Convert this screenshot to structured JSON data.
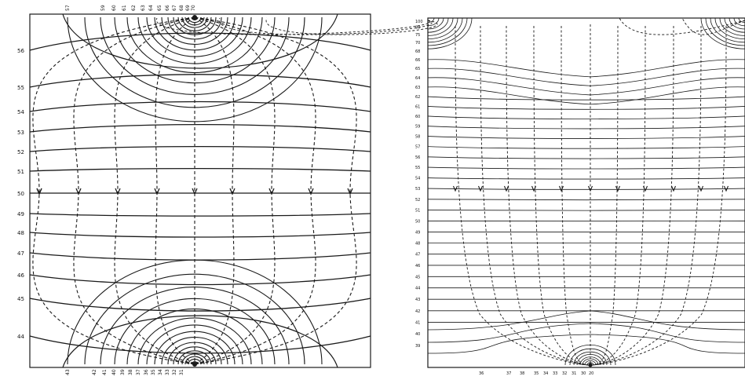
{
  "left_panel": {
    "left_labels": [
      "56",
      "55",
      "54",
      "53",
      "52",
      "51",
      "50",
      "49",
      "48",
      "47",
      "46",
      "45",
      "44"
    ],
    "top_labels": [
      "57",
      "59",
      "60",
      "61",
      "62",
      "63",
      "64",
      "65",
      "66",
      "67",
      "68",
      "69",
      "70"
    ],
    "bottom_labels": [
      "43",
      "42",
      "41",
      "40",
      "39",
      "38",
      "37",
      "36",
      "35",
      "34",
      "33",
      "32",
      "31"
    ]
  },
  "right_panel": {
    "left_labels": [
      "100",
      "80",
      "75",
      "70",
      "68",
      "66",
      "65",
      "64",
      "63",
      "62",
      "61",
      "60",
      "59",
      "58",
      "57",
      "56",
      "55",
      "54",
      "53",
      "52",
      "51",
      "50",
      "49",
      "48",
      "47",
      "46",
      "45",
      "44",
      "43",
      "42",
      "41",
      "40",
      "39"
    ],
    "bottom_labels": [
      "36",
      "37",
      "38",
      "35",
      "34",
      "33",
      "32",
      "31",
      "30",
      "20"
    ]
  },
  "colors": {
    "ink": "#1a1a1a",
    "paper": "#ffffff"
  }
}
